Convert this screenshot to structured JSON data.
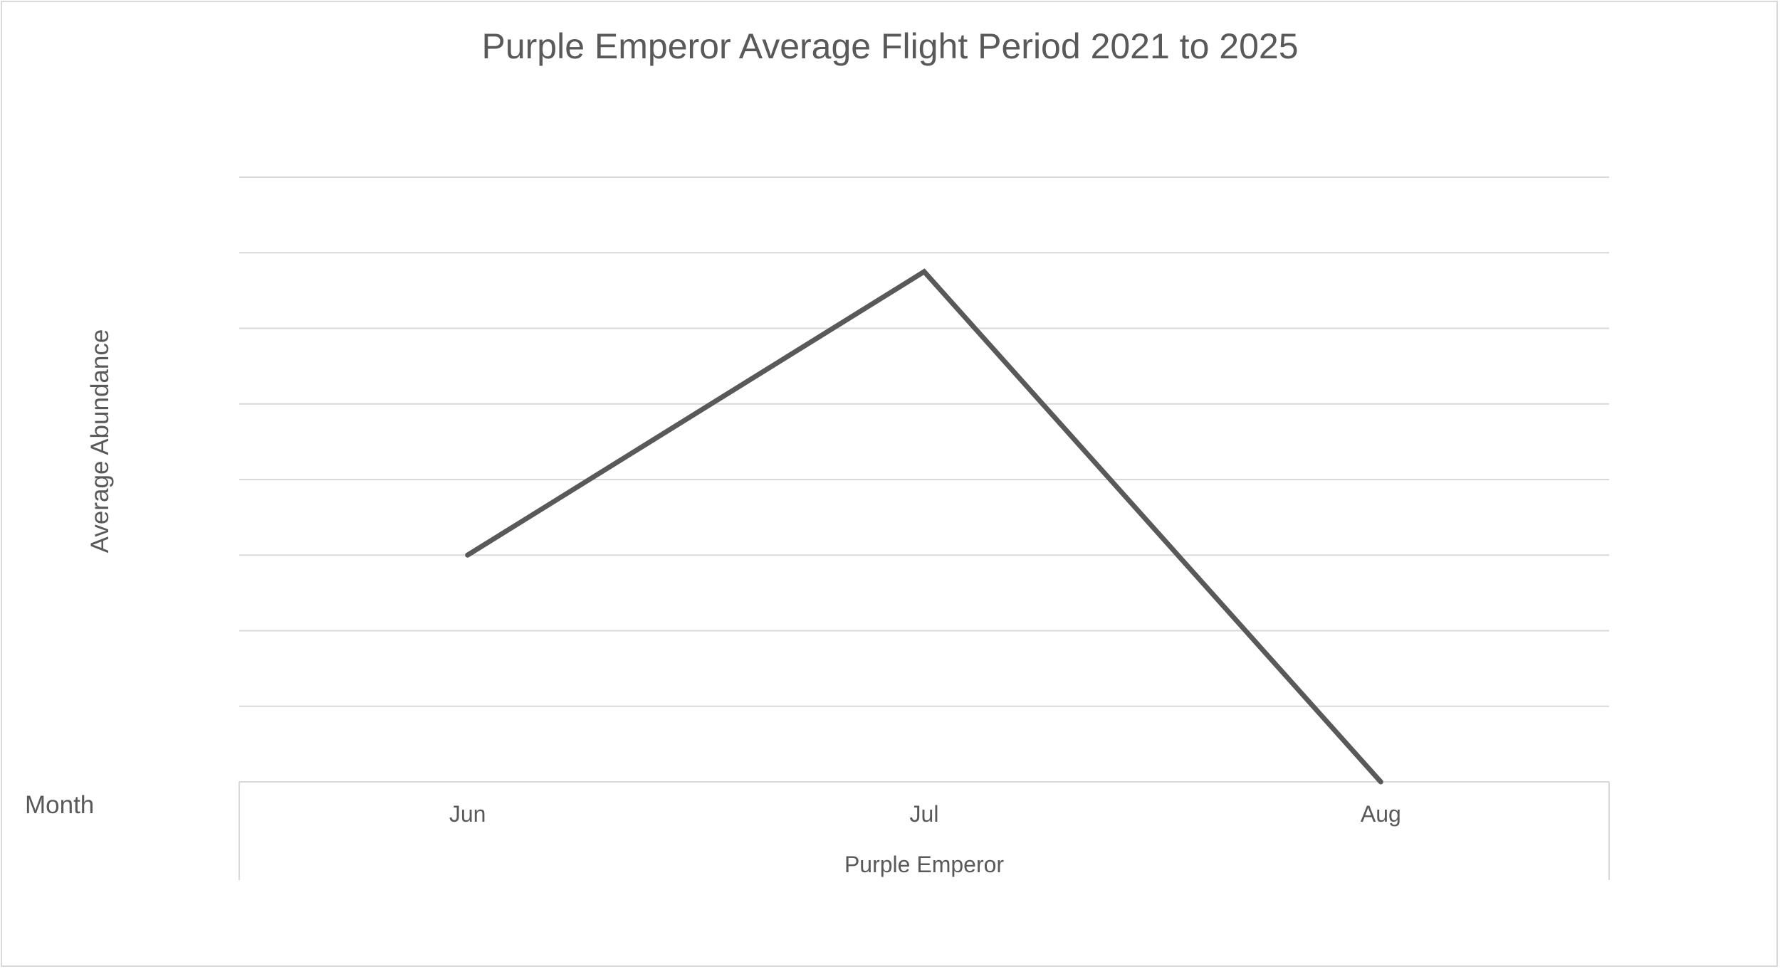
{
  "chart_data": {
    "type": "line",
    "title": "Purple Emperor Average Flight Period 2021 to 2025",
    "xlabel": "Month",
    "ylabel": "Average Abundance",
    "category_group_label": "Purple Emperor",
    "categories": [
      "Jun",
      "Jul",
      "Aug"
    ],
    "series": [
      {
        "values": [
          0.3,
          0.675,
          0.0
        ]
      }
    ],
    "ylim": [
      0,
      0.8
    ],
    "y_gridline_count": 8,
    "grid": true,
    "y_tick_labels_visible": false,
    "legend": "none",
    "line_color": "#595959",
    "grid_color": "#d9d9d9",
    "text_color": "#595959"
  }
}
